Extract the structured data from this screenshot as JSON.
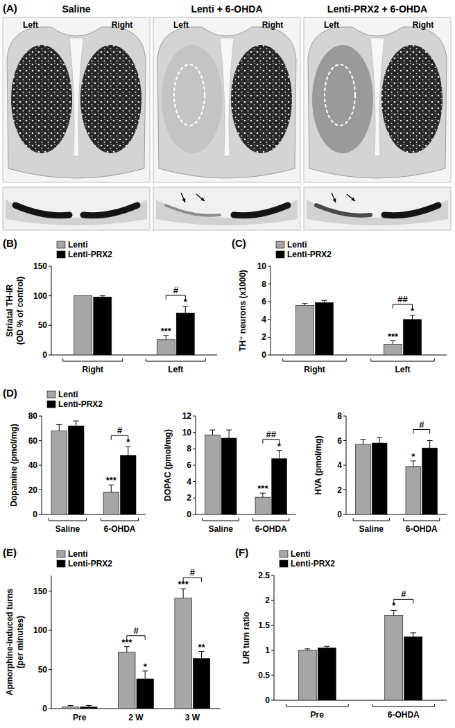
{
  "panel_a": {
    "label": "(A)",
    "columns": [
      {
        "title": "Saline",
        "left": "Left",
        "right": "Right"
      },
      {
        "title": "Lenti + 6-OHDA",
        "left": "Left",
        "right": "Right"
      },
      {
        "title": "Lenti-PRX2 + 6-OHDA",
        "left": "Left",
        "right": "Right"
      }
    ]
  },
  "chart_data": [
    {
      "type": "bar",
      "title": "(B)",
      "ylabel": "Striatal TH-IR (OD % of control)",
      "categories": [
        "Right",
        "Left"
      ],
      "series": [
        {
          "name": "Lenti",
          "color": "#a6a6a6",
          "values": [
            100,
            26
          ],
          "errors": [
            null,
            7
          ],
          "significance": [
            null,
            "***"
          ]
        },
        {
          "name": "Lenti-PRX2",
          "color": "#000000",
          "values": [
            98,
            71
          ],
          "errors": [
            2,
            11
          ],
          "significance": [
            null,
            "*"
          ]
        }
      ],
      "ylim": [
        0,
        150
      ],
      "yticks": [
        0,
        50,
        100,
        150
      ],
      "legend": "top-left",
      "annotations": [
        {
          "text": "#",
          "category": 1
        }
      ]
    },
    {
      "type": "bar",
      "title": "(C)",
      "ylabel": "TH⁺ neurons (x1000)",
      "categories": [
        "Right",
        "Left"
      ],
      "series": [
        {
          "name": "Lenti",
          "color": "#a6a6a6",
          "values": [
            5.6,
            1.2
          ],
          "errors": [
            0.2,
            0.4
          ],
          "significance": [
            null,
            "***"
          ]
        },
        {
          "name": "Lenti-PRX2",
          "color": "#000000",
          "values": [
            5.9,
            4.0
          ],
          "errors": [
            0.25,
            0.45
          ],
          "significance": [
            null,
            "*"
          ]
        }
      ],
      "ylim": [
        0,
        10
      ],
      "yticks": [
        0,
        2,
        4,
        6,
        8,
        10
      ],
      "legend": "top-left",
      "annotations": [
        {
          "text": "##",
          "category": 1
        }
      ]
    },
    {
      "type": "bar",
      "title": "(D)",
      "ylabel": "Dopamine (pmol/mg)",
      "categories": [
        "Saline",
        "6-OHDA"
      ],
      "series": [
        {
          "name": "Lenti",
          "color": "#a6a6a6",
          "values": [
            68,
            18
          ],
          "errors": [
            5,
            6
          ],
          "significance": [
            null,
            "***"
          ]
        },
        {
          "name": "Lenti-PRX2",
          "color": "#000000",
          "values": [
            72,
            48
          ],
          "errors": [
            4,
            7
          ],
          "significance": [
            null,
            "*"
          ]
        }
      ],
      "ylim": [
        0,
        80
      ],
      "yticks": [
        0,
        20,
        40,
        60,
        80
      ],
      "legend": "top-left",
      "annotations": [
        {
          "text": "#",
          "category": 1
        }
      ]
    },
    {
      "type": "bar",
      "ylabel": "DOPAC (pmol/mg)",
      "categories": [
        "Saline",
        "6-OHDA"
      ],
      "series": [
        {
          "name": "Lenti",
          "color": "#a6a6a6",
          "values": [
            9.7,
            2.1
          ],
          "errors": [
            0.6,
            0.5
          ],
          "significance": [
            null,
            "***"
          ]
        },
        {
          "name": "Lenti-PRX2",
          "color": "#000000",
          "values": [
            9.3,
            6.8
          ],
          "errors": [
            1.0,
            1.0
          ],
          "significance": [
            null,
            "*"
          ]
        }
      ],
      "ylim": [
        0,
        12
      ],
      "yticks": [
        0,
        2,
        4,
        6,
        8,
        10,
        12
      ],
      "annotations": [
        {
          "text": "##",
          "category": 1
        }
      ]
    },
    {
      "type": "bar",
      "ylabel": "HVA (pmol/mg)",
      "categories": [
        "Saline",
        "6-OHDA"
      ],
      "series": [
        {
          "name": "Lenti",
          "color": "#a6a6a6",
          "values": [
            5.7,
            3.9
          ],
          "errors": [
            0.4,
            0.45
          ],
          "significance": [
            null,
            "*"
          ]
        },
        {
          "name": "Lenti-PRX2",
          "color": "#000000",
          "values": [
            5.8,
            5.4
          ],
          "errors": [
            0.45,
            0.6
          ],
          "significance": [
            null,
            null
          ]
        }
      ],
      "ylim": [
        0,
        8
      ],
      "yticks": [
        0,
        2,
        4,
        6,
        8
      ],
      "annotations": [
        {
          "text": "#",
          "category": 1
        }
      ]
    },
    {
      "type": "bar",
      "title": "(E)",
      "ylabel": "Apmorphine-induced turns (per minutes)",
      "categories": [
        "Pre",
        "2 W",
        "3 W"
      ],
      "series": [
        {
          "name": "Lenti",
          "color": "#a6a6a6",
          "values": [
            2,
            72,
            141
          ],
          "errors": [
            2,
            7,
            12
          ],
          "significance": [
            null,
            "***",
            "***"
          ]
        },
        {
          "name": "Lenti-PRX2",
          "color": "#000000",
          "values": [
            2,
            38,
            64
          ],
          "errors": [
            2,
            10,
            9
          ],
          "significance": [
            null,
            "*",
            "**"
          ]
        }
      ],
      "ylim": [
        0,
        170
      ],
      "yticks": [
        0,
        50,
        100,
        150
      ],
      "legend": "top-left",
      "annotations": [
        {
          "text": "#",
          "category": 1
        },
        {
          "text": "#",
          "category": 2
        }
      ]
    },
    {
      "type": "bar",
      "title": "(F)",
      "ylabel": "L/R turn ratio",
      "categories": [
        "Pre",
        "6-OHDA"
      ],
      "series": [
        {
          "name": "Lenti",
          "color": "#a6a6a6",
          "values": [
            1.0,
            1.7
          ],
          "errors": [
            0.03,
            0.1
          ],
          "significance": [
            null,
            "*"
          ]
        },
        {
          "name": "Lenti-PRX2",
          "color": "#000000",
          "values": [
            1.05,
            1.27
          ],
          "errors": [
            0.03,
            0.08
          ],
          "significance": [
            null,
            null
          ]
        }
      ],
      "ylim": [
        0,
        2.5
      ],
      "yticks": [
        0,
        0.5,
        1,
        1.5,
        2,
        2.5
      ],
      "legend": "top-left",
      "annotations": [
        {
          "text": "#",
          "category": 1
        }
      ]
    }
  ]
}
